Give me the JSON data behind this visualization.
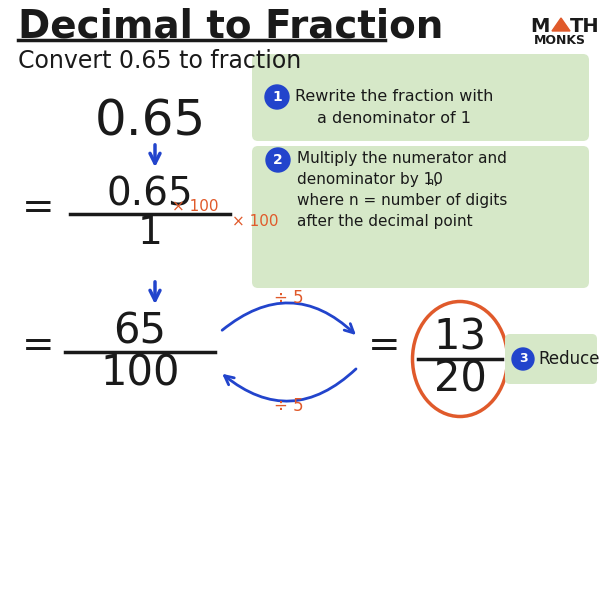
{
  "title": "Decimal to Fraction",
  "subtitle": "Convert 0.65 to fraction",
  "bg_color": "#ffffff",
  "title_color": "#1a1a1a",
  "blue_color": "#2244cc",
  "orange_color": "#e05a2b",
  "green_box_color": "#d6e8c8",
  "step1_label": "Rewrite the fraction with\na denominator of 1",
  "step2_line1": "Multiply the numerator and",
  "step2_line2": "denominator by 10",
  "step2_line2b": "n",
  "step2_line2c": ",",
  "step2_line3": "where n = number of digits",
  "step2_line4": "after the decimal point",
  "step3_label": "Reduce",
  "mathmonks_triangle_color": "#e05a2b"
}
